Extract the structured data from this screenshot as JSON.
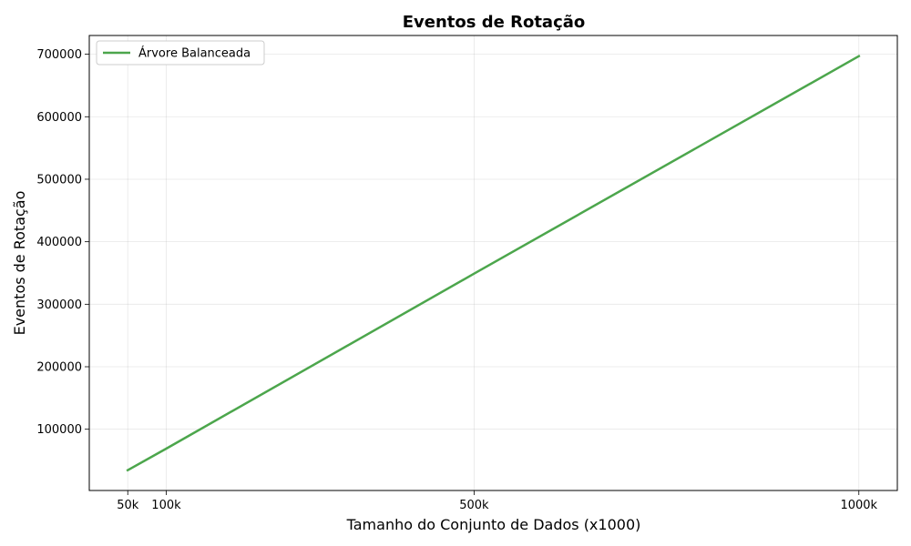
{
  "chart_data": {
    "type": "line",
    "title": "Eventos de Rotação",
    "xlabel": "Tamanho do Conjunto de Dados (x1000)",
    "ylabel": "Eventos de Rotação",
    "x": [
      50,
      100,
      500,
      1000
    ],
    "x_tick_labels": [
      "50k",
      "100k",
      "500k",
      "1000k"
    ],
    "y_ticks": [
      100000,
      200000,
      300000,
      400000,
      500000,
      600000,
      700000
    ],
    "y_tick_labels": [
      "100000",
      "200000",
      "300000",
      "400000",
      "500000",
      "600000",
      "700000"
    ],
    "xlim": [
      0,
      1050
    ],
    "ylim": [
      2000,
      730000
    ],
    "grid": true,
    "legend_position": "top-left",
    "series": [
      {
        "name": "Árvore Balanceada",
        "color": "#4ca64c",
        "values": [
          34500,
          69000,
          349000,
          697000
        ]
      }
    ]
  }
}
